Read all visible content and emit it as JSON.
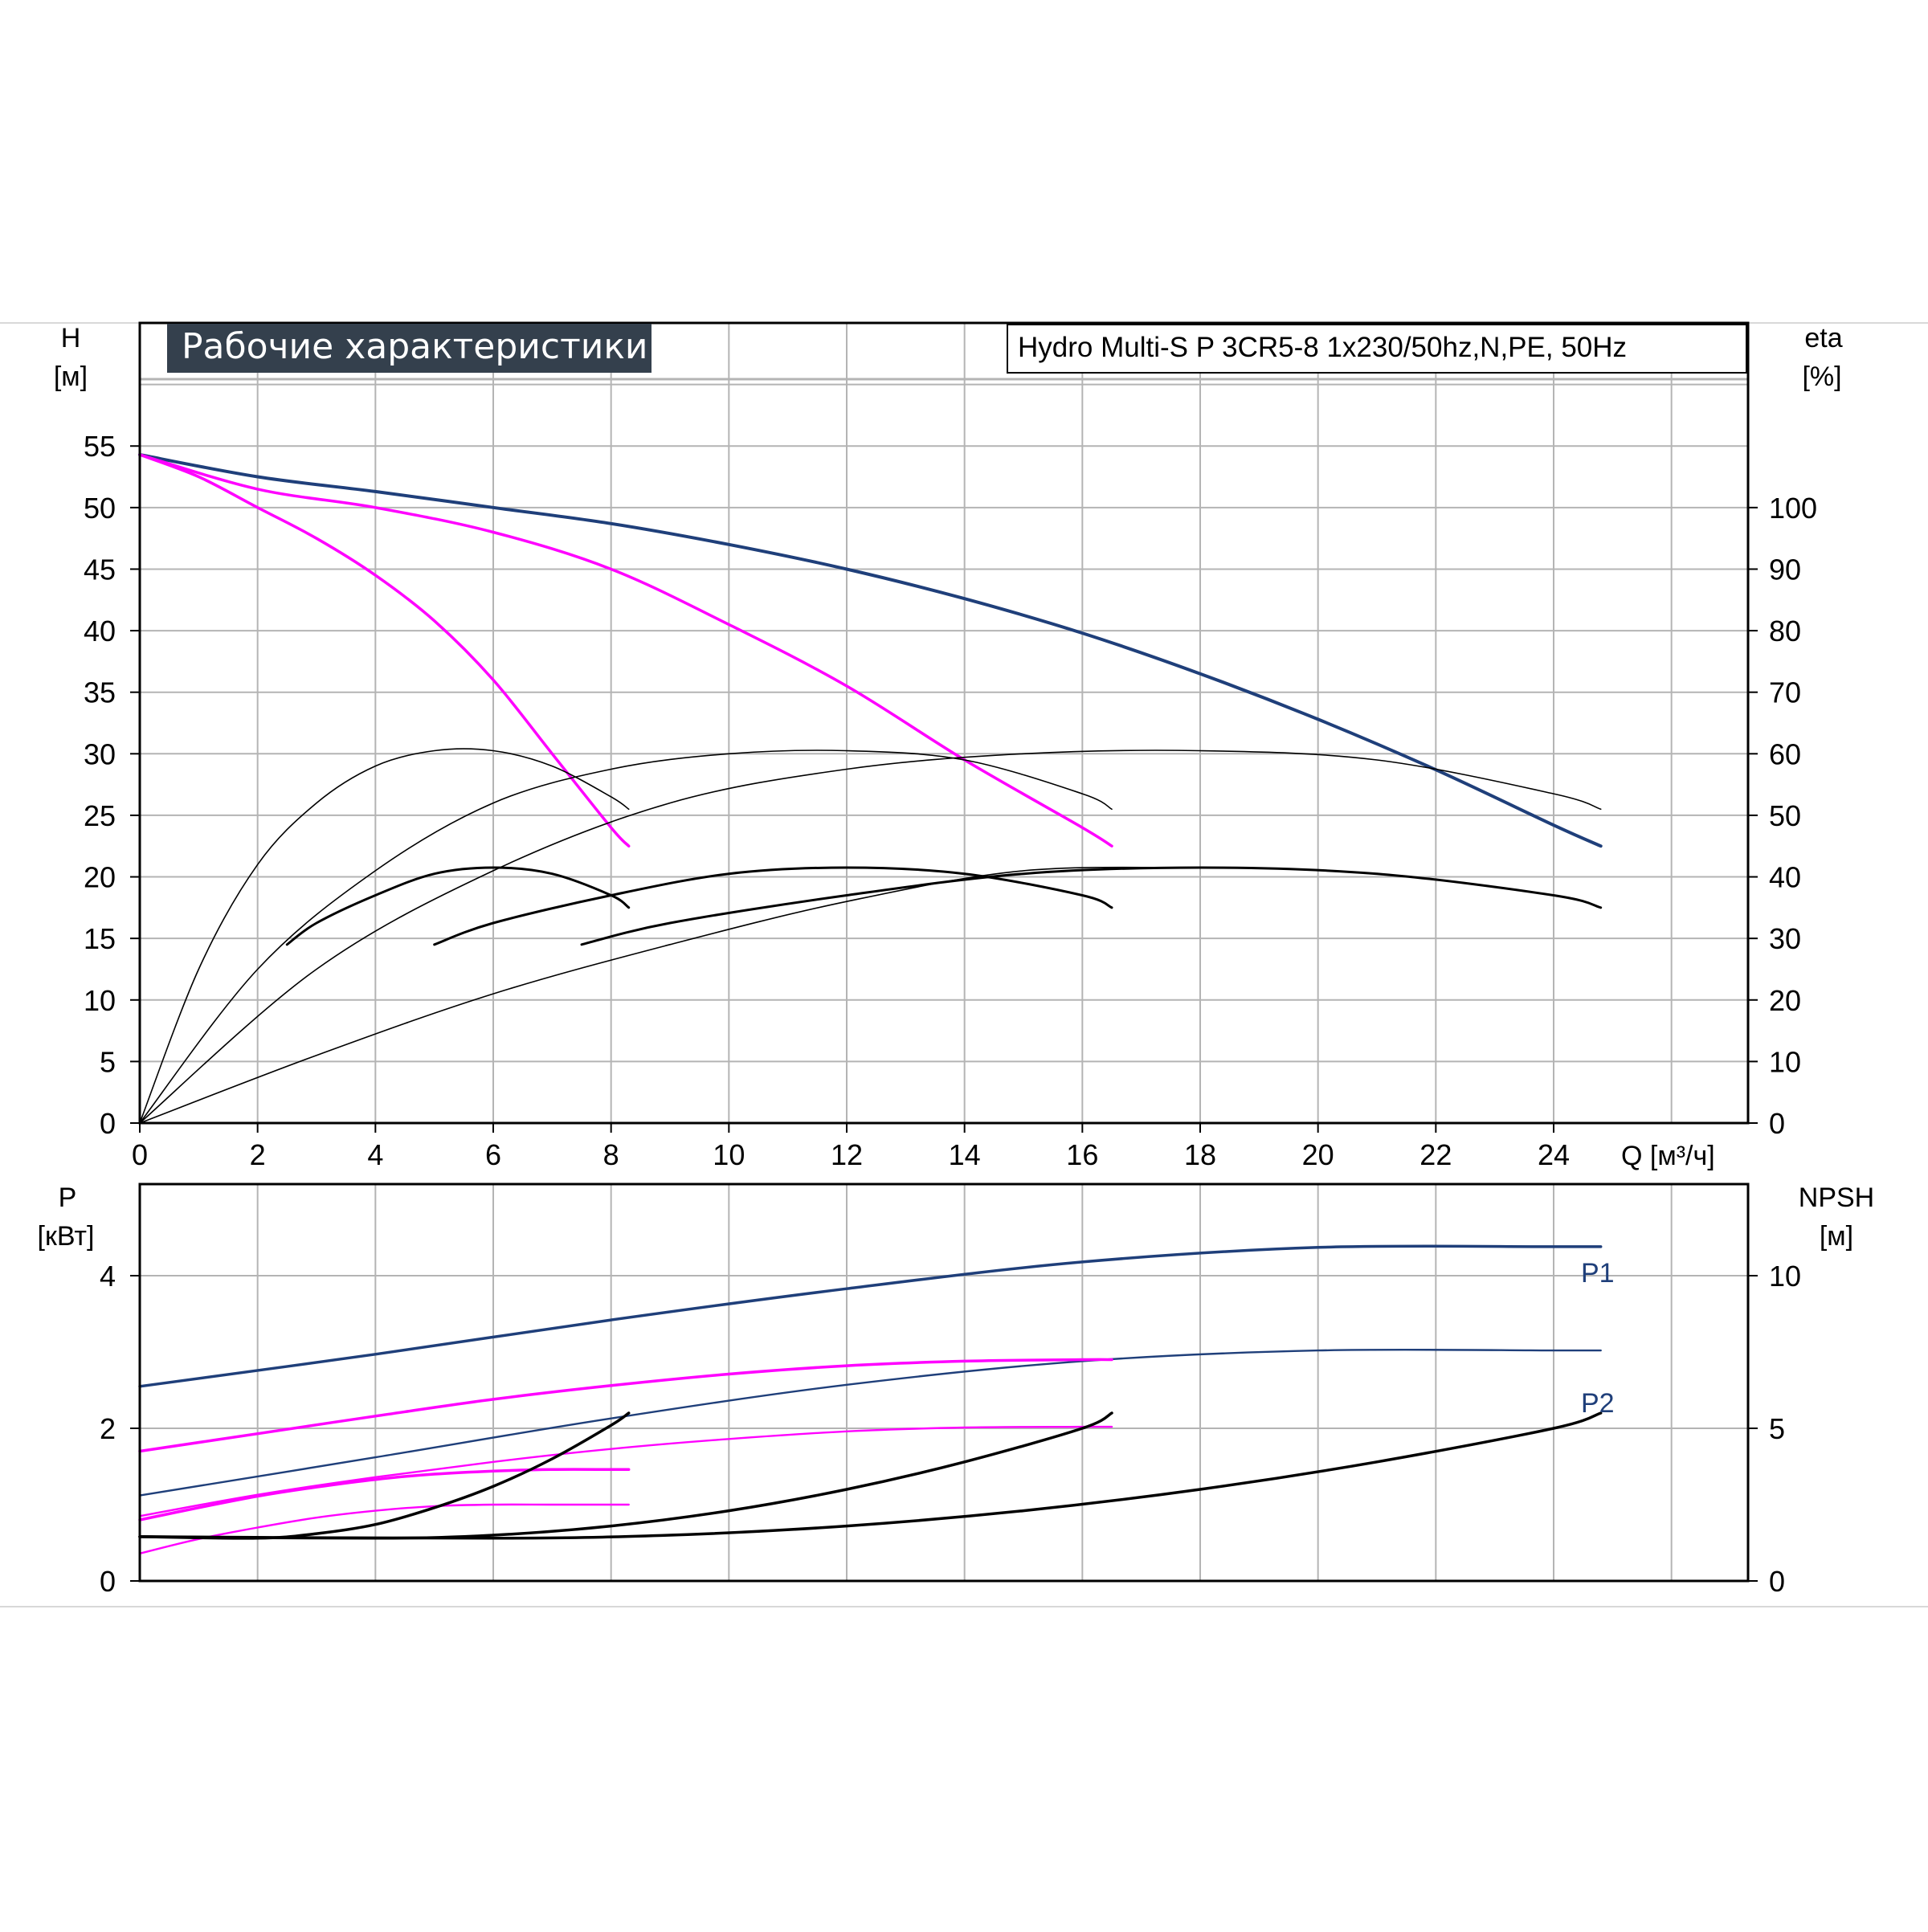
{
  "chart_data": [
    {
      "type": "line",
      "panel": "head-efficiency",
      "title": "Рабочие характеристики",
      "subtitle": "Hydro Multi-S P 3CR5-8 1x230/50hz,N,PE, 50Hz",
      "xlabel": "Q [м³/ч]",
      "ylabel_left": "H",
      "ylabel_left_unit": "[м]",
      "ylabel_right": "eta",
      "ylabel_right_unit": "[%]",
      "x_ticks": [
        "0",
        "2",
        "4",
        "6",
        "8",
        "10",
        "12",
        "14",
        "16",
        "18",
        "20",
        "22",
        "24"
      ],
      "y_left_ticks": [
        "0",
        "5",
        "10",
        "15",
        "20",
        "25",
        "30",
        "35",
        "40",
        "45",
        "50",
        "55"
      ],
      "y_right_ticks": [
        "0",
        "10",
        "20",
        "30",
        "40",
        "50",
        "60",
        "70",
        "80",
        "90",
        "100"
      ],
      "xlim": [
        0,
        27.3
      ],
      "ylim_left": [
        0,
        65
      ],
      "ylim_right": [
        0,
        130
      ],
      "grid": true,
      "colors": {
        "three_pumps": "#1f3f7a",
        "partial_pumps": "#ff00ff",
        "efficiency": "#000000"
      },
      "series": [
        {
          "axis": "left",
          "color": "#1f3f7a",
          "width": 4,
          "x": [
            0,
            2,
            4,
            6,
            8,
            10,
            12,
            14,
            16,
            18,
            20,
            22,
            24,
            24.8
          ],
          "y": [
            54.3,
            52.5,
            51.3,
            50,
            48.7,
            47,
            45,
            42.6,
            39.8,
            36.5,
            32.8,
            28.7,
            24.2,
            22.5
          ]
        },
        {
          "axis": "left",
          "color": "#ff00ff",
          "width": 3.5,
          "x": [
            0,
            2,
            4,
            6,
            8,
            10,
            12,
            14,
            16,
            16.5
          ],
          "y": [
            54.3,
            51.5,
            50,
            48,
            45,
            40.5,
            35.5,
            29.5,
            24,
            22.5
          ]
        },
        {
          "axis": "left",
          "color": "#ff00ff",
          "width": 3.5,
          "x": [
            0,
            1,
            2,
            3,
            4,
            5,
            6,
            7,
            8,
            8.3
          ],
          "y": [
            54.3,
            52.5,
            50,
            47.5,
            44.5,
            40.8,
            36,
            30,
            24,
            22.5
          ]
        },
        {
          "axis": "right",
          "color": "#000000",
          "width": 1.6,
          "x": [
            0,
            1,
            2,
            3,
            4,
            5,
            6,
            7,
            8,
            8.3
          ],
          "y": [
            0,
            25,
            42,
            52,
            58,
            60.5,
            60.5,
            58,
            53,
            51
          ]
        },
        {
          "axis": "right",
          "color": "#000000",
          "width": 1.6,
          "x": [
            0,
            2,
            4,
            6,
            8,
            10,
            12,
            14,
            16,
            16.5
          ],
          "y": [
            0,
            25,
            41,
            52,
            57.5,
            60,
            60.5,
            59,
            53.5,
            51
          ]
        },
        {
          "axis": "right",
          "color": "#000000",
          "width": 1.6,
          "x": [
            0,
            3,
            6,
            9,
            12,
            15,
            18,
            21,
            24,
            24.8
          ],
          "y": [
            0,
            25,
            41,
            52,
            57.5,
            60,
            60.5,
            59,
            53.5,
            51
          ]
        },
        {
          "axis": "right",
          "color": "#000000",
          "width": 3,
          "x": [
            2.5,
            3,
            4,
            5,
            6,
            7,
            8,
            8.3
          ],
          "y": [
            29,
            32.5,
            37,
            40.5,
            41.5,
            40.5,
            37,
            35
          ]
        },
        {
          "axis": "right",
          "color": "#000000",
          "width": 3,
          "x": [
            5,
            6,
            8,
            10,
            12,
            14,
            16,
            16.5
          ],
          "y": [
            29,
            32.5,
            37,
            40.5,
            41.5,
            40.5,
            37,
            35
          ]
        },
        {
          "axis": "right",
          "color": "#000000",
          "width": 3,
          "x": [
            7.5,
            9,
            12,
            15,
            18,
            21,
            24,
            24.8
          ],
          "y": [
            29,
            32.5,
            37,
            40.5,
            41.5,
            40.5,
            37,
            35
          ]
        },
        {
          "axis": "right",
          "color": "#000000",
          "width": 1.6,
          "x": [
            0,
            3,
            6,
            9,
            12,
            15,
            18
          ],
          "y": [
            0,
            11,
            21,
            29,
            36,
            41,
            41.5
          ]
        }
      ]
    },
    {
      "type": "line",
      "panel": "power-npsh",
      "xlabel": "",
      "ylabel_left": "P",
      "ylabel_left_unit": "[кВт]",
      "ylabel_right": "NPSH",
      "ylabel_right_unit": "[м]",
      "y_left_ticks": [
        "0",
        "2",
        "4"
      ],
      "y_right_ticks": [
        "0",
        "5",
        "10"
      ],
      "xlim": [
        0,
        27.3
      ],
      "ylim_left": [
        0,
        5.2
      ],
      "ylim_right": [
        0,
        13
      ],
      "grid": true,
      "annotations": [
        {
          "text": "P1",
          "x": 24.4,
          "y": 4.7
        },
        {
          "text": "P2",
          "x": 24.4,
          "y": 2.65
        }
      ],
      "series": [
        {
          "axis": "left",
          "color": "#1f3f7a",
          "width": 3.5,
          "x": [
            0,
            4,
            8,
            12,
            16,
            20,
            24,
            24.8
          ],
          "y": [
            2.55,
            2.97,
            3.42,
            3.83,
            4.18,
            4.37,
            4.38,
            4.38
          ]
        },
        {
          "axis": "left",
          "color": "#1f3f7a",
          "width": 2.4,
          "x": [
            0,
            4,
            8,
            12,
            16,
            20,
            24,
            24.8
          ],
          "y": [
            1.12,
            1.62,
            2.13,
            2.57,
            2.88,
            3.02,
            3.02,
            3.02
          ]
        },
        {
          "axis": "left",
          "color": "#ff00ff",
          "width": 3.5,
          "x": [
            0,
            2,
            4,
            6,
            8,
            10,
            12,
            14,
            16,
            16.5
          ],
          "y": [
            1.7,
            1.93,
            2.16,
            2.38,
            2.56,
            2.71,
            2.82,
            2.88,
            2.9,
            2.9
          ]
        },
        {
          "axis": "left",
          "color": "#ff00ff",
          "width": 2.4,
          "x": [
            0,
            2,
            4,
            6,
            8,
            10,
            12,
            14,
            16,
            16.5
          ],
          "y": [
            0.85,
            1.13,
            1.36,
            1.56,
            1.73,
            1.86,
            1.96,
            2.01,
            2.02,
            2.02
          ]
        },
        {
          "axis": "left",
          "color": "#ff00ff",
          "width": 3.5,
          "x": [
            0,
            1,
            2,
            3,
            4,
            5,
            6,
            7,
            8,
            8.3
          ],
          "y": [
            0.8,
            0.96,
            1.11,
            1.23,
            1.33,
            1.4,
            1.44,
            1.46,
            1.46,
            1.46
          ]
        },
        {
          "axis": "left",
          "color": "#ff00ff",
          "width": 2.4,
          "x": [
            0,
            1,
            2,
            3,
            4,
            5,
            6,
            7,
            8,
            8.3
          ],
          "y": [
            0.36,
            0.55,
            0.7,
            0.83,
            0.92,
            0.98,
            1.0,
            1.0,
            1.0,
            1.0
          ]
        },
        {
          "axis": "right",
          "color": "#000000",
          "width": 3.5,
          "x": [
            0,
            2,
            3,
            4,
            5,
            6,
            7,
            8,
            8.3
          ],
          "y": [
            1.45,
            1.4,
            1.55,
            1.85,
            2.4,
            3.1,
            4.0,
            5.1,
            5.5
          ]
        },
        {
          "axis": "right",
          "color": "#000000",
          "width": 3.5,
          "x": [
            0,
            4,
            6,
            8,
            10,
            12,
            14,
            16,
            16.5
          ],
          "y": [
            1.45,
            1.4,
            1.5,
            1.8,
            2.3,
            3.0,
            3.9,
            5.0,
            5.5
          ]
        },
        {
          "axis": "right",
          "color": "#000000",
          "width": 3.5,
          "x": [
            0,
            6,
            9,
            12,
            15,
            18,
            21,
            24,
            24.8
          ],
          "y": [
            1.45,
            1.4,
            1.5,
            1.8,
            2.3,
            3.0,
            3.9,
            5.0,
            5.5
          ]
        }
      ]
    }
  ]
}
